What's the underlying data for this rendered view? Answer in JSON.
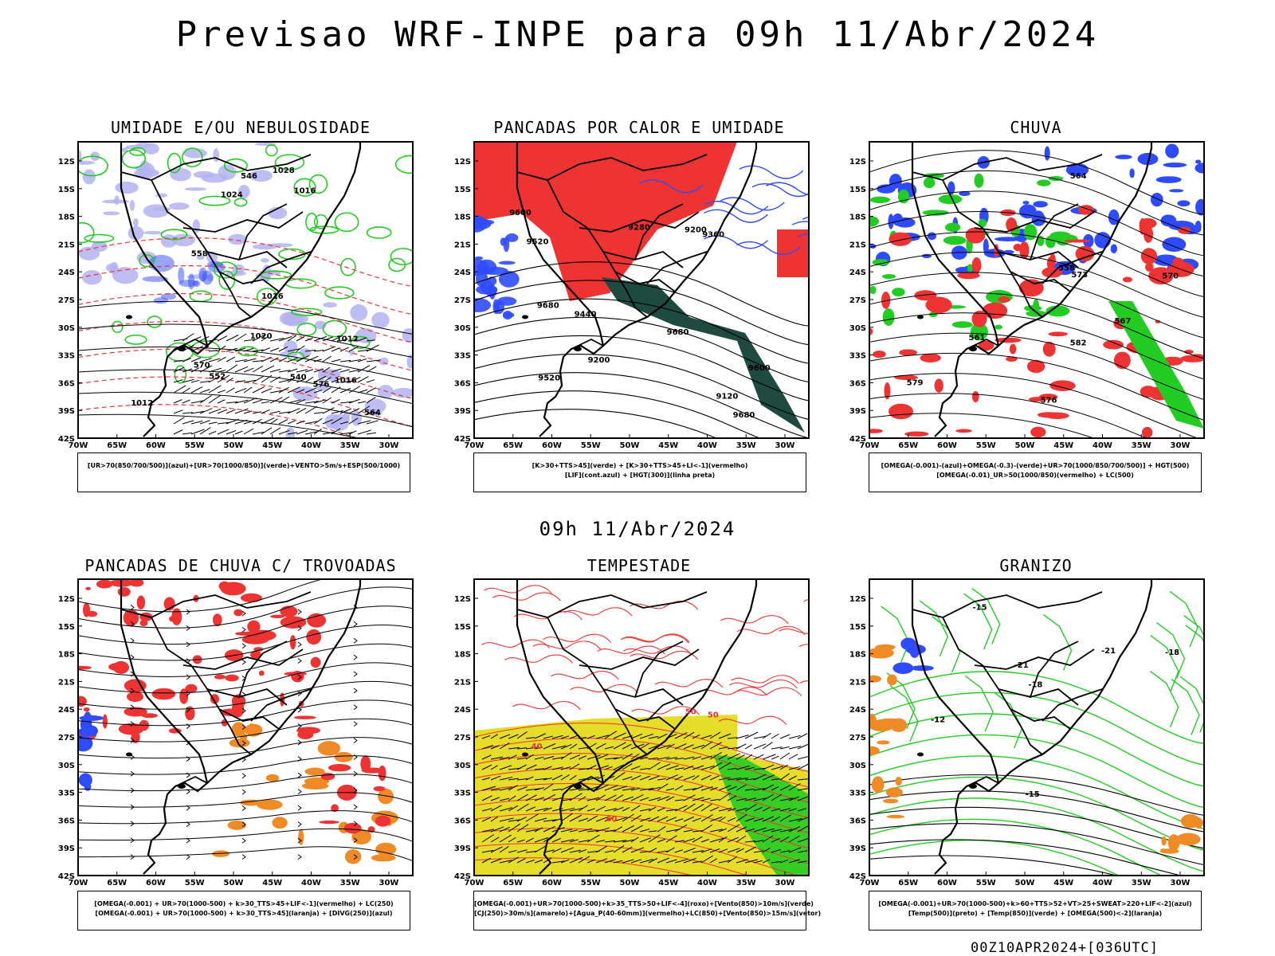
{
  "header": {
    "title": "Previsao WRF-INPE  para 09h 11/Abr/2024"
  },
  "middle": {
    "title": "09h 11/Abr/2024"
  },
  "footer": {
    "run": "00Z10APR2024+[036UTC]"
  },
  "axes": {
    "lat_labels": [
      "12S",
      "15S",
      "18S",
      "21S",
      "24S",
      "27S",
      "30S",
      "33S",
      "36S",
      "39S",
      "42S"
    ],
    "lon_labels": [
      "70W",
      "65W",
      "60W",
      "55W",
      "50W",
      "45W",
      "40W",
      "35W",
      "30W"
    ]
  },
  "panels": [
    {
      "id": "umidade",
      "title": "UMIDADE E/OU NEBULOSIDADE",
      "legend": [
        "[UR>70(850/700/500)](azul)+[UR>70(1000/850)](verde)+VENTO>5m/s+ESP(500/1000)"
      ],
      "contour_labels": [
        "1012",
        "1012",
        "1016",
        "1020",
        "1024",
        "1028",
        "1016",
        "1016",
        "576",
        "570",
        "564",
        "558",
        "552",
        "546",
        "540"
      ]
    },
    {
      "id": "pancadas",
      "title": "PANCADAS POR CALOR E UMIDADE",
      "legend": [
        "[K>30+TTS>45](verde) + [K>30+TTS>45+LI<-1](vermelho)",
        "[LIF](cont.azul) + [HGT(300)](linha preta)"
      ],
      "contour_labels": [
        "9680",
        "9680",
        "9680",
        "9600",
        "9600",
        "9520",
        "9520",
        "9440",
        "9360",
        "9280",
        "9200",
        "9120",
        "9200"
      ]
    },
    {
      "id": "chuva",
      "title": "CHUVA",
      "legend": [
        "[OMEGA(-0.001)-(azul)+OMEGA(-0.3)-(verde)+UR>70(1000/850/700/500)] + HGT(500)",
        "[OMEGA(-0.01)_UR>50(1000/850)(vermelho) + LC(500)"
      ],
      "contour_labels": [
        "582",
        "579",
        "576",
        "573",
        "570",
        "567",
        "564",
        "561",
        "558"
      ]
    },
    {
      "id": "trovoadas",
      "title": "PANCADAS DE CHUVA C/ TROVOADAS",
      "legend": [
        "[OMEGA(-0.001) + UR>70(1000-500) + k>30_TTS>45+LIF<-1](vermelho) + LC(250)",
        "[OMEGA(-0.001) + UR>70(1000-500) + k>30_TTS>45](laranja) + [DIVG(250)](azul)"
      ],
      "contour_labels": []
    },
    {
      "id": "tempestade",
      "title": "TEMPESTADE",
      "legend": [
        "[OMEGA(-0.001)+UR>70(1000-500)+k>35_TTS>50+LIF<-4](roxo)+[Vento(850)>10m/s](verde)",
        "[CJ(250)>30m/s](amarelo)+[Agua_P(40-60mm)](vermelho)+LC(850)+[Vento(850)>15m/s](vetor)"
      ],
      "contour_labels": [
        "50",
        "50",
        "40",
        "60"
      ]
    },
    {
      "id": "granizo",
      "title": "GRANIZO",
      "legend": [
        "[OMEGA(-0.001)+UR>70(1000-500)+k>60+TTS>52+VT>25+SWEAT>220+LIF<-2](azul)",
        "[Temp(500)](preto) + [Temp(850)](verde) + [OMEGA(500)<-2](laranja)"
      ],
      "contour_labels": [
        "-12",
        "-15",
        "-18",
        "-21",
        "-15",
        "-18",
        "-21"
      ]
    }
  ],
  "colors": {
    "azul": "#2f4bff",
    "lavanda": "#b3b3f0",
    "verde": "#22cc22",
    "vermelho": "#ee3333",
    "laranja": "#f08a24",
    "amarelo": "#e6dc2a",
    "verde_escuro": "#1e4a40",
    "preto": "#000000"
  }
}
